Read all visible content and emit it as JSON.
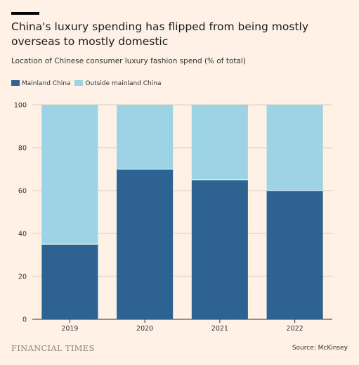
{
  "header": {
    "title": "China's luxury spending has flipped from being mostly overseas to mostly domestic",
    "subtitle": "Location of Chinese consumer luxury fashion spend (% of total)"
  },
  "footer": {
    "logo_text": "FINANCIAL TIMES",
    "source": "Source: McKinsey"
  },
  "colors": {
    "background": "#fff1e5",
    "mainland": "#2e6291",
    "outside": "#9ed3e6",
    "gridline": "#d9cbbd",
    "axis": "#33302e"
  },
  "chart_data": {
    "type": "bar",
    "stacked": true,
    "categories": [
      "2019",
      "2020",
      "2021",
      "2022"
    ],
    "series": [
      {
        "name": "Mainland China",
        "color": "#2e6291",
        "values": [
          35,
          70,
          65,
          60
        ]
      },
      {
        "name": "Outside mainland China",
        "color": "#9ed3e6",
        "values": [
          65,
          30,
          35,
          40
        ]
      }
    ],
    "ylim": [
      0,
      100
    ],
    "yticks": [
      "0",
      "20",
      "40",
      "60",
      "80",
      "100"
    ],
    "grid": true,
    "legend_position": "top-left"
  }
}
